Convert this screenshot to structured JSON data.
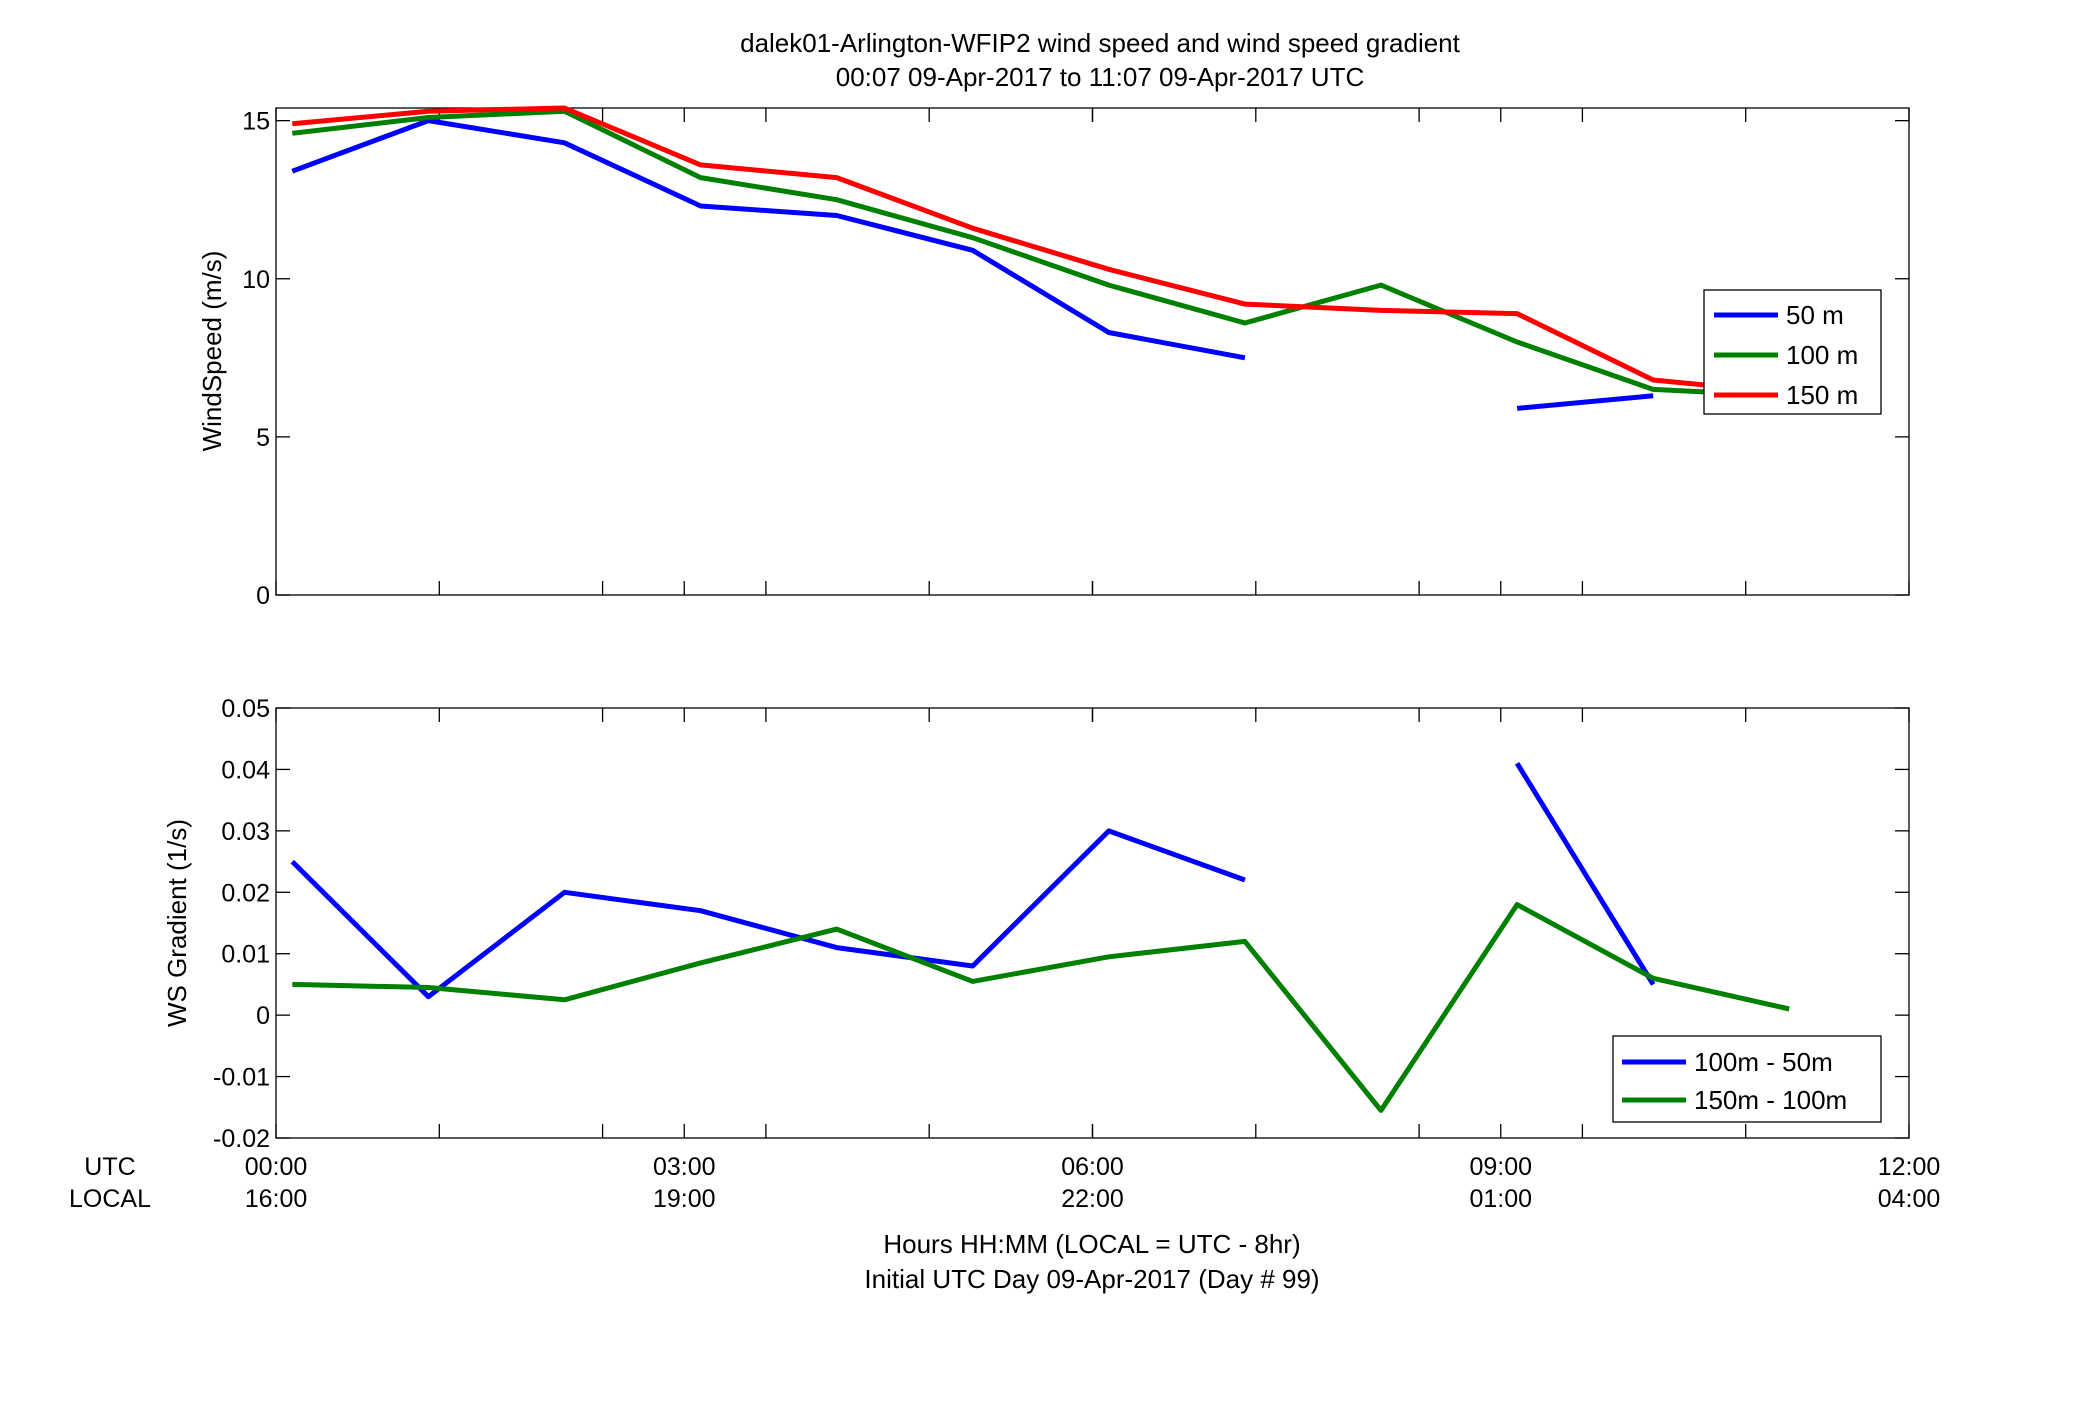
{
  "chart_data": [
    {
      "type": "line",
      "title": "dalek01-Arlington-WFIP2  wind speed and wind speed gradient",
      "subtitle": "00:07 09-Apr-2017 to 11:07 09-Apr-2017  UTC",
      "xlabel": "",
      "ylabel": "WindSpeed (m/s)",
      "xlim": [
        0,
        12
      ],
      "ylim": [
        0,
        15.4
      ],
      "yticks": [
        0,
        5,
        10,
        15
      ],
      "ytick_labels": [
        "0",
        "5",
        "10",
        "15"
      ],
      "grid": false,
      "legend_position": "right",
      "series": [
        {
          "name": "50 m",
          "color": "#0000ff",
          "points": [
            [
              [
                0.12,
                13.4
              ],
              [
                1.12,
                15.0
              ],
              [
                2.12,
                14.3
              ],
              [
                3.12,
                12.3
              ],
              [
                4.12,
                12.0
              ],
              [
                5.12,
                10.9
              ],
              [
                6.12,
                8.3
              ],
              [
                7.12,
                7.5
              ]
            ],
            [
              [
                9.12,
                5.9
              ],
              [
                10.12,
                6.3
              ]
            ]
          ]
        },
        {
          "name": "100 m",
          "color": "#008000",
          "points": [
            [
              [
                0.12,
                14.6
              ],
              [
                1.12,
                15.1
              ],
              [
                2.12,
                15.3
              ],
              [
                3.12,
                13.2
              ],
              [
                4.12,
                12.5
              ],
              [
                5.12,
                11.3
              ],
              [
                6.12,
                9.8
              ],
              [
                7.12,
                8.6
              ],
              [
                8.12,
                9.8
              ],
              [
                9.12,
                8.0
              ],
              [
                10.12,
                6.5
              ],
              [
                10.6,
                6.4
              ]
            ]
          ]
        },
        {
          "name": "150 m",
          "color": "#ff0000",
          "points": [
            [
              [
                0.12,
                14.9
              ],
              [
                1.12,
                15.3
              ],
              [
                2.12,
                15.4
              ],
              [
                3.12,
                13.6
              ],
              [
                4.12,
                13.2
              ],
              [
                5.12,
                11.6
              ],
              [
                6.12,
                10.3
              ],
              [
                7.12,
                9.2
              ],
              [
                8.12,
                9.0
              ],
              [
                9.12,
                8.9
              ],
              [
                10.12,
                6.8
              ],
              [
                10.6,
                6.6
              ]
            ]
          ]
        }
      ]
    },
    {
      "type": "line",
      "ylabel": "WS Gradient (1/s)",
      "xlim": [
        0,
        12
      ],
      "ylim": [
        -0.02,
        0.05
      ],
      "yticks": [
        -0.02,
        -0.01,
        0,
        0.01,
        0.02,
        0.03,
        0.04,
        0.05
      ],
      "ytick_labels": [
        "-0.02",
        "-0.01",
        "0",
        "0.01",
        "0.02",
        "0.03",
        "0.04",
        "0.05"
      ],
      "grid": false,
      "legend_position": "bottom-right",
      "series": [
        {
          "name": "100m - 50m",
          "color": "#0000ff",
          "points": [
            [
              [
                0.12,
                0.025
              ],
              [
                1.12,
                0.003
              ],
              [
                2.12,
                0.02
              ],
              [
                3.12,
                0.017
              ],
              [
                4.12,
                0.011
              ],
              [
                5.12,
                0.008
              ],
              [
                6.12,
                0.03
              ],
              [
                7.12,
                0.022
              ]
            ],
            [
              [
                9.12,
                0.041
              ],
              [
                10.12,
                0.005
              ]
            ]
          ]
        },
        {
          "name": "150m - 100m",
          "color": "#008000",
          "points": [
            [
              [
                0.12,
                0.005
              ],
              [
                1.12,
                0.0045
              ],
              [
                2.12,
                0.0025
              ],
              [
                3.12,
                0.0085
              ],
              [
                4.12,
                0.014
              ],
              [
                5.12,
                0.0055
              ],
              [
                6.12,
                0.0095
              ],
              [
                7.12,
                0.012
              ],
              [
                8.12,
                -0.0155
              ],
              [
                9.12,
                0.018
              ],
              [
                10.12,
                0.006
              ],
              [
                11.12,
                0.001
              ]
            ]
          ]
        }
      ]
    }
  ],
  "x_axis": {
    "row_labels": [
      "UTC",
      "LOCAL"
    ],
    "ticks": [
      0,
      3,
      6,
      9,
      12
    ],
    "minor_ticks": [
      1.2,
      2.4,
      3.6,
      4.8,
      6,
      7.2,
      8.4,
      9.6,
      10.8
    ],
    "utc_labels": [
      "00:00",
      "03:00",
      "06:00",
      "09:00",
      "12:00"
    ],
    "local_labels": [
      "16:00",
      "19:00",
      "22:00",
      "01:00",
      "04:00"
    ],
    "label_line1": "Hours HH:MM  (LOCAL = UTC - 8hr)",
    "label_line2": "Initial UTC Day 09-Apr-2017 (Day # 99)"
  }
}
